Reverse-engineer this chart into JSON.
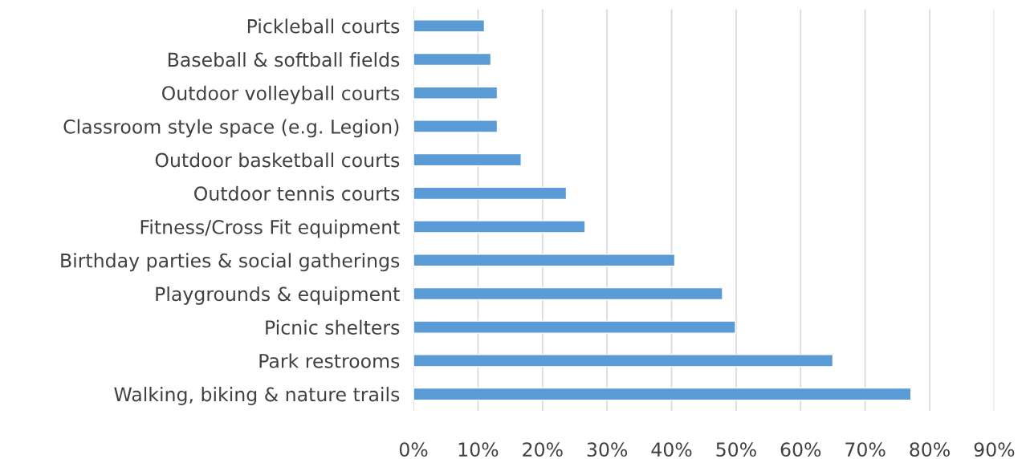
{
  "chart_data": {
    "type": "bar",
    "orientation": "horizontal",
    "categories": [
      "Pickleball courts",
      "Baseball & softball fields",
      "Outdoor volleyball courts",
      "Classroom style space (e.g. Legion)",
      "Outdoor basketball courts",
      "Outdoor tennis courts",
      "Fitness/Cross Fit equipment",
      "Birthday parties & social gatherings",
      "Playgrounds & equipment",
      "Picnic shelters",
      "Park restrooms",
      "Walking, biking & nature trails"
    ],
    "values": [
      11,
      12,
      13,
      13,
      16.7,
      23.7,
      26.6,
      40.5,
      47.9,
      49.9,
      65,
      77.1
    ],
    "color": "#5b9bd5",
    "xlim": [
      0,
      90
    ],
    "xticks": [
      {
        "value": 0,
        "label": "0%"
      },
      {
        "value": 10,
        "label": "10%"
      },
      {
        "value": 20,
        "label": "20%"
      },
      {
        "value": 30,
        "label": "30%"
      },
      {
        "value": 40,
        "label": "40%"
      },
      {
        "value": 50,
        "label": "50%"
      },
      {
        "value": 60,
        "label": "60%"
      },
      {
        "value": 70,
        "label": "70%"
      },
      {
        "value": 80,
        "label": "80%"
      },
      {
        "value": 90,
        "label": "90%"
      }
    ],
    "grid": "x"
  }
}
